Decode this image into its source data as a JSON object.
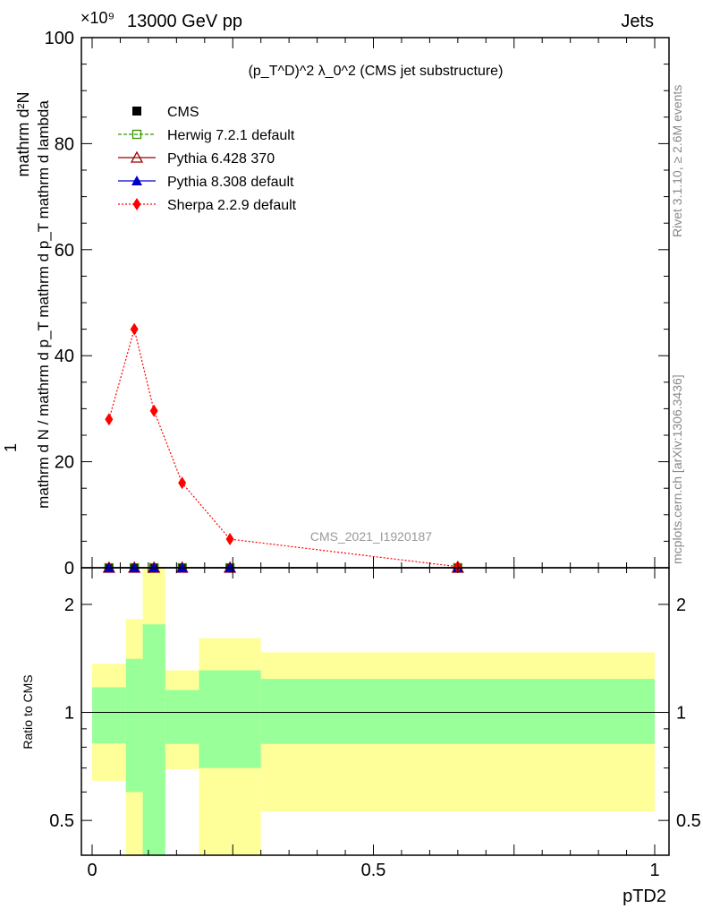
{
  "header": {
    "left": "13000 GeV pp",
    "right": "Jets",
    "exponent": "×10⁹"
  },
  "side_labels": {
    "rivet": "Rivet 3.1.10, ≥ 2.6M events",
    "mcplots": "mcplots.cern.ch [arXiv:1306.3436]"
  },
  "watermark": "CMS_2021_I1920187",
  "chart_data": [
    {
      "type": "line",
      "title": "(p_T^D)^2 λ_0^2 (CMS jet substructure)",
      "ylabel": "1/(mathrm d N / mathrm d p_T) mathrm d^2N/(mathrm d p_T mathrm d lambda)",
      "ylabel_parts": {
        "one": "1",
        "den": "mathrm d N / mathrm d p_T mathrm d p_T mathrm d lambda",
        "num": "mathrm d²N"
      },
      "xlim": [
        0,
        1
      ],
      "ylim": [
        0,
        100
      ],
      "yticks": [
        0,
        20,
        40,
        60,
        80,
        100
      ],
      "legend": [
        "CMS",
        "Herwig 7.2.1 default",
        "Pythia 6.428 370",
        "Pythia 8.308 default",
        "Sherpa 2.2.9 default"
      ],
      "legend_placement": "top-left",
      "series": [
        {
          "name": "CMS",
          "color": "#000000",
          "x": [
            0.03,
            0.075,
            0.11,
            0.16,
            0.245,
            0.65
          ],
          "y": [
            0,
            0,
            0,
            0,
            0,
            0
          ]
        },
        {
          "name": "Herwig 7.2.1 default",
          "color": "#339900",
          "x": [
            0.03,
            0.075,
            0.11,
            0.16,
            0.245,
            0.65
          ],
          "y": [
            0,
            0,
            0,
            0,
            0,
            0
          ]
        },
        {
          "name": "Pythia 6.428 370",
          "color": "#990000",
          "x": [
            0.03,
            0.075,
            0.11,
            0.16,
            0.245,
            0.65
          ],
          "y": [
            0,
            0,
            0,
            0,
            0,
            0
          ]
        },
        {
          "name": "Pythia 8.308 default",
          "color": "#0000cc",
          "x": [
            0.03,
            0.075,
            0.11,
            0.16,
            0.245,
            0.65
          ],
          "y": [
            0,
            0,
            0,
            0,
            0,
            0
          ]
        },
        {
          "name": "Sherpa 2.2.9 default",
          "color": "#ff0000",
          "x": [
            0.03,
            0.075,
            0.11,
            0.16,
            0.245,
            0.65
          ],
          "y": [
            28,
            45,
            29.6,
            16,
            5.4,
            0.2
          ]
        }
      ]
    },
    {
      "type": "area",
      "ylabel": "Ratio to CMS",
      "xlabel": "pTD2",
      "xlim": [
        0,
        1
      ],
      "ylim": [
        0.4,
        2.53
      ],
      "yscale": "log",
      "yticks": [
        0.5,
        1,
        2
      ],
      "ytick_labels": [
        "0.5",
        "1",
        "2"
      ],
      "xticks": [
        0,
        0.5,
        1
      ],
      "xtick_labels": [
        "0",
        "0.5",
        "1"
      ],
      "bin_edges": [
        0,
        0.06,
        0.09,
        0.13,
        0.19,
        0.3,
        1.0
      ],
      "band_1sigma": {
        "color": "#99ff99",
        "low": [
          0.82,
          0.6,
          0.3,
          0.817,
          0.7,
          0.817
        ],
        "high": [
          1.175,
          1.41,
          1.76,
          1.155,
          1.31,
          1.24
        ]
      },
      "band_2sigma": {
        "color": "#ffff99",
        "low": [
          0.645,
          0.3,
          0.3,
          0.695,
          0.3,
          0.53
        ],
        "high": [
          1.366,
          1.82,
          3.0,
          1.31,
          1.61,
          1.47
        ]
      }
    }
  ]
}
